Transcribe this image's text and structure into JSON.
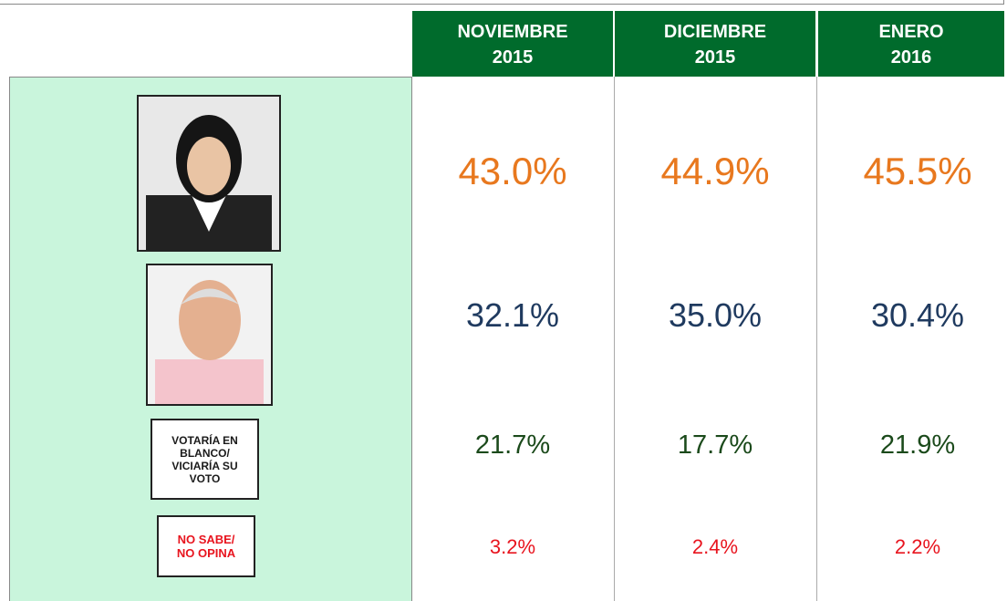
{
  "columns": [
    {
      "month": "NOVIEMBRE",
      "year": "2015"
    },
    {
      "month": "DICIEMBRE",
      "year": "2015"
    },
    {
      "month": "ENERO",
      "year": "2016"
    }
  ],
  "rows": [
    {
      "values": [
        "43.0%",
        "44.9%",
        "45.5%"
      ],
      "color": "#e8781e"
    },
    {
      "values": [
        "32.1%",
        "35.0%",
        "30.4%"
      ],
      "color": "#1f3a5f"
    },
    {
      "label": [
        "VOTARÍA EN",
        "BLANCO/",
        "VICIARÍA SU",
        "VOTO"
      ],
      "values": [
        "21.7%",
        "17.7%",
        "21.9%"
      ],
      "color": "#1b4a1b"
    },
    {
      "label": [
        "NO SABE/",
        "NO OPINA"
      ],
      "values": [
        "3.2%",
        "2.4%",
        "2.2%"
      ],
      "color": "#e8141e"
    }
  ]
}
